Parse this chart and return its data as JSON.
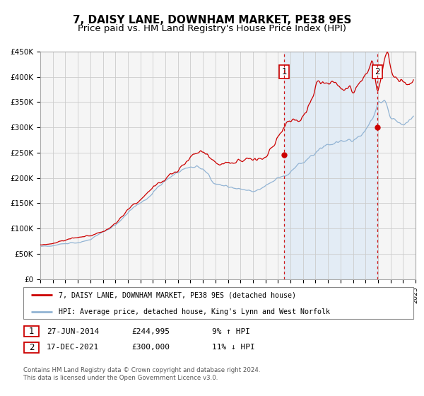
{
  "title": "7, DAISY LANE, DOWNHAM MARKET, PE38 9ES",
  "subtitle": "Price paid vs. HM Land Registry's House Price Index (HPI)",
  "ylim": [
    0,
    450000
  ],
  "xlim_start": 1995,
  "xlim_end": 2025,
  "yticks": [
    0,
    50000,
    100000,
    150000,
    200000,
    250000,
    300000,
    350000,
    400000,
    450000
  ],
  "ytick_labels": [
    "£0",
    "£50K",
    "£100K",
    "£150K",
    "£200K",
    "£250K",
    "£300K",
    "£350K",
    "£400K",
    "£450K"
  ],
  "hpi_color": "#92b4d4",
  "hpi_fill_color": "#dce9f5",
  "price_color": "#cc0000",
  "marker1_date": 2014.49,
  "marker1_price": 244995,
  "marker2_date": 2021.96,
  "marker2_price": 300000,
  "vline1_x": 2014.49,
  "vline2_x": 2021.96,
  "legend_label_price": "7, DAISY LANE, DOWNHAM MARKET, PE38 9ES (detached house)",
  "legend_label_hpi": "HPI: Average price, detached house, King's Lynn and West Norfolk",
  "annotation1_label": "1",
  "annotation2_label": "2",
  "table_row1": [
    "1",
    "27-JUN-2014",
    "£244,995",
    "9% ↑ HPI"
  ],
  "table_row2": [
    "2",
    "17-DEC-2021",
    "£300,000",
    "11% ↓ HPI"
  ],
  "footer1": "Contains HM Land Registry data © Crown copyright and database right 2024.",
  "footer2": "This data is licensed under the Open Government Licence v3.0.",
  "bg_color": "#f5f5f5",
  "grid_color": "#cccccc",
  "title_fontsize": 11,
  "subtitle_fontsize": 9.5
}
